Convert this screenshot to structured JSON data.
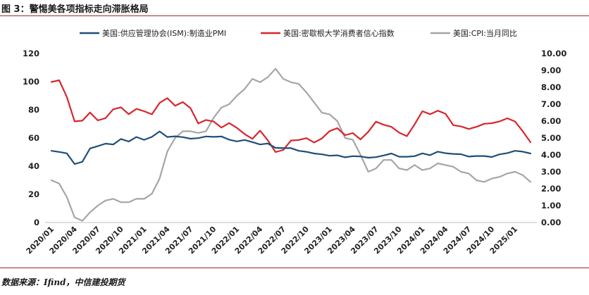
{
  "figure": {
    "title": "图 3：警惕美各项指标走向滞胀格局",
    "source": "数据来源：Ifind，中信建投期货"
  },
  "chart_data": {
    "type": "line",
    "title": "图 3：警惕美各项指标走向滞胀格局",
    "x": [
      "2020/01",
      "2020/02",
      "2020/03",
      "2020/04",
      "2020/05",
      "2020/06",
      "2020/07",
      "2020/08",
      "2020/09",
      "2020/10",
      "2020/11",
      "2020/12",
      "2021/01",
      "2021/02",
      "2021/03",
      "2021/04",
      "2021/05",
      "2021/06",
      "2021/07",
      "2021/08",
      "2021/09",
      "2021/10",
      "2021/11",
      "2021/12",
      "2022/01",
      "2022/02",
      "2022/03",
      "2022/04",
      "2022/05",
      "2022/06",
      "2022/07",
      "2022/08",
      "2022/09",
      "2022/10",
      "2022/11",
      "2022/12",
      "2023/01",
      "2023/02",
      "2023/03",
      "2023/04",
      "2023/05",
      "2023/06",
      "2023/07",
      "2023/08",
      "2023/09",
      "2023/10",
      "2023/11",
      "2023/12",
      "2024/01",
      "2024/02",
      "2024/03",
      "2024/04",
      "2024/05",
      "2024/06",
      "2024/07",
      "2024/08",
      "2024/09",
      "2024/10",
      "2024/11",
      "2024/12",
      "2025/01",
      "2025/02",
      "2025/03"
    ],
    "x_tick_labels": [
      "2020/01",
      "2020/04",
      "2020/07",
      "2020/10",
      "2021/01",
      "2021/04",
      "2021/07",
      "2021/10",
      "2022/01",
      "2022/04",
      "2022/07",
      "2022/10",
      "2023/01",
      "2023/04",
      "2023/07",
      "2023/10",
      "2024/01",
      "2024/04",
      "2024/07",
      "2024/10",
      "2025/01"
    ],
    "y_left": {
      "lim": [
        0,
        120
      ],
      "ticks": [
        "0",
        "20",
        "40",
        "60",
        "80",
        "100",
        "120"
      ]
    },
    "y_right": {
      "lim": [
        0,
        10
      ],
      "ticks": [
        "0.00",
        "1.00",
        "2.00",
        "3.00",
        "4.00",
        "5.00",
        "6.00",
        "7.00",
        "8.00",
        "9.00",
        "10.00"
      ]
    },
    "legend_position": "top",
    "series": [
      {
        "name": "美国:供应管理协会(ISM):制造业PMI",
        "axis": "left",
        "color": "#1f4e79",
        "values": [
          50.9,
          50.1,
          49.1,
          41.5,
          43.1,
          52.6,
          54.2,
          56.0,
          55.4,
          59.3,
          57.5,
          60.7,
          58.7,
          60.8,
          64.7,
          60.7,
          61.2,
          60.6,
          59.5,
          59.9,
          61.1,
          60.8,
          61.1,
          58.8,
          57.6,
          58.6,
          57.1,
          55.4,
          56.1,
          53.0,
          52.8,
          52.8,
          50.9,
          50.2,
          49.0,
          48.4,
          47.4,
          47.7,
          46.3,
          47.1,
          46.9,
          46.0,
          46.4,
          47.6,
          49.0,
          46.7,
          46.7,
          47.1,
          49.1,
          47.8,
          50.3,
          49.2,
          48.7,
          48.5,
          46.8,
          47.2,
          47.2,
          46.5,
          48.4,
          49.3,
          50.9,
          50.3,
          49.0
        ]
      },
      {
        "name": "美国:密歇根大学消费者信心指数",
        "axis": "left",
        "color": "#d7262d",
        "values": [
          99.8,
          101.0,
          89.1,
          71.8,
          72.3,
          78.1,
          72.5,
          74.1,
          80.4,
          81.8,
          76.9,
          80.7,
          79.0,
          76.8,
          84.9,
          88.3,
          82.9,
          85.5,
          81.2,
          70.3,
          72.8,
          71.7,
          67.4,
          70.6,
          67.2,
          62.8,
          59.4,
          65.2,
          58.4,
          50.0,
          51.5,
          58.2,
          58.6,
          59.9,
          56.8,
          59.7,
          64.9,
          67.0,
          62.0,
          63.5,
          59.0,
          64.4,
          71.6,
          69.4,
          67.9,
          63.8,
          61.3,
          69.7,
          79.0,
          76.9,
          79.4,
          77.2,
          69.1,
          68.2,
          66.4,
          67.9,
          70.1,
          70.5,
          71.8,
          74.0,
          71.7,
          64.7,
          57.0
        ]
      },
      {
        "name": "美国:CPI:当月同比",
        "axis": "right",
        "color": "#a6a6a6",
        "values": [
          2.5,
          2.3,
          1.5,
          0.3,
          0.1,
          0.6,
          1.0,
          1.3,
          1.4,
          1.2,
          1.2,
          1.4,
          1.4,
          1.7,
          2.6,
          4.2,
          5.0,
          5.4,
          5.4,
          5.3,
          5.4,
          6.2,
          6.8,
          7.0,
          7.5,
          7.9,
          8.5,
          8.3,
          8.6,
          9.1,
          8.5,
          8.3,
          8.2,
          7.7,
          7.1,
          6.5,
          6.4,
          6.0,
          5.0,
          4.9,
          4.0,
          3.0,
          3.2,
          3.7,
          3.7,
          3.2,
          3.1,
          3.4,
          3.1,
          3.2,
          3.5,
          3.4,
          3.3,
          3.0,
          2.9,
          2.5,
          2.4,
          2.6,
          2.7,
          2.9,
          3.0,
          2.8,
          2.4
        ]
      }
    ]
  }
}
